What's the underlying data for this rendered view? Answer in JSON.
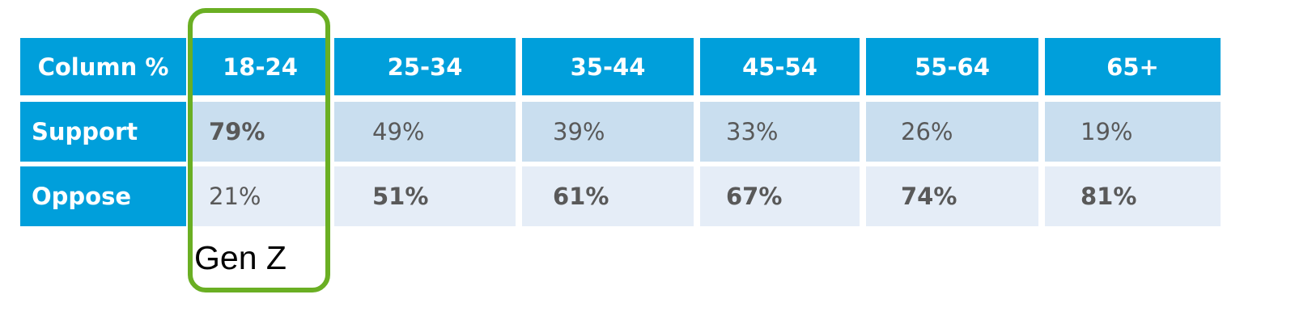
{
  "table": {
    "header": [
      "Column %",
      "18-24",
      "25-34",
      "35-44",
      "45-54",
      "55-64",
      "65+"
    ],
    "rows": [
      [
        "Support",
        "79%",
        "49%",
        "39%",
        "33%",
        "26%",
        "19%"
      ],
      [
        "Oppose",
        "21%",
        "51%",
        "61%",
        "67%",
        "74%",
        "81%"
      ]
    ]
  },
  "annotation": "Gen Z"
}
